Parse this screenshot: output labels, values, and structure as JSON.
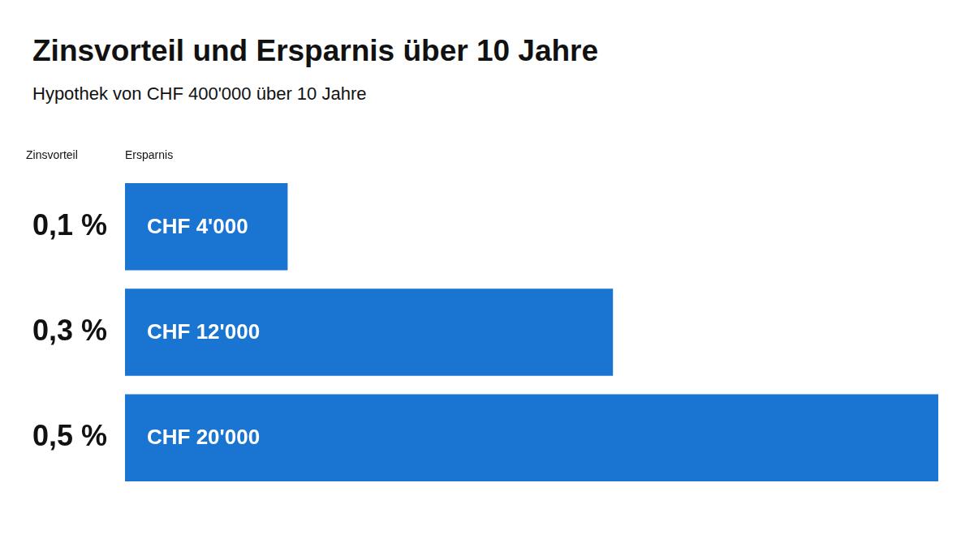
{
  "chart_data": {
    "type": "bar",
    "title": "Zinsvorteil und Ersparnis über 10 Jahre",
    "subtitle": "Hypothek von CHF 400'000 über 10 Jahre",
    "ylabel": "Zinsvorteil",
    "xlabel": "Ersparnis",
    "orientation": "horizontal",
    "categories": [
      "0,1 %",
      "0,3 %",
      "0,5 %"
    ],
    "values": [
      4000,
      12000,
      20000
    ],
    "value_labels": [
      "CHF 4'000",
      "CHF 12'000",
      "CHF 20'000"
    ],
    "data_labels": true,
    "color": "#1a75d2",
    "xlim": [
      0,
      20000
    ],
    "grid": false,
    "tick_labels": "y"
  }
}
